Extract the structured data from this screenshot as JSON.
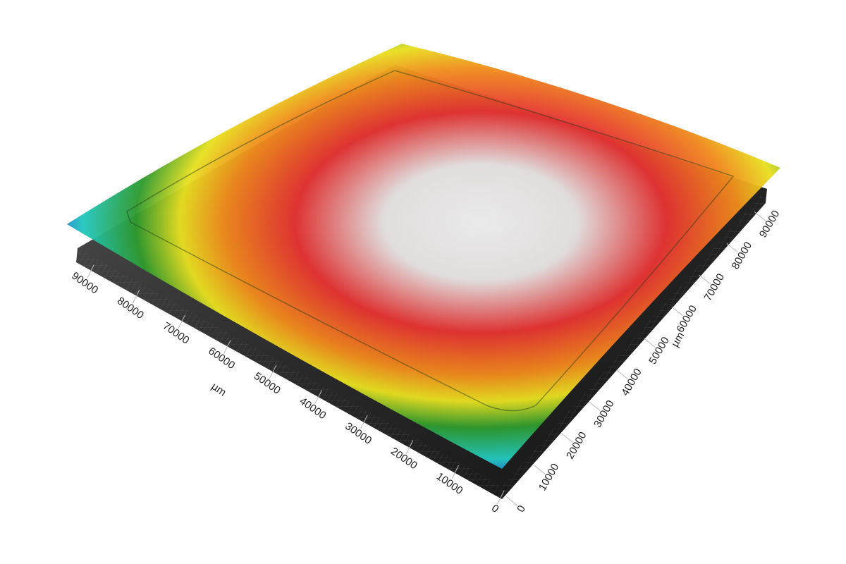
{
  "chart_data": {
    "type": "surface3d",
    "xlabel": "µm",
    "xlim": [
      0,
      90000
    ],
    "xticks": [
      0,
      10000,
      20000,
      30000,
      40000,
      50000,
      60000,
      70000,
      80000,
      90000
    ],
    "ylabel": "µm",
    "ylim": [
      0,
      90000
    ],
    "yticks": [
      0,
      10000,
      20000,
      30000,
      40000,
      50000,
      60000,
      70000,
      80000,
      90000
    ]
  }
}
